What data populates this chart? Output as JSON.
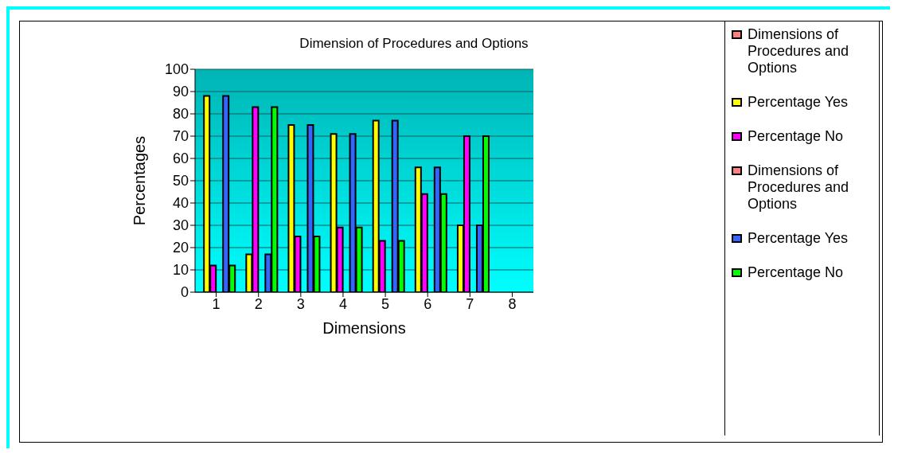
{
  "chart_data": {
    "type": "bar",
    "title": "Dimension of Procedures and Options",
    "xlabel": "Dimensions",
    "ylabel": "Percentages",
    "categories": [
      "1",
      "2",
      "3",
      "4",
      "5",
      "6",
      "7",
      "8"
    ],
    "series": [
      {
        "name": "Dimensions of Procedures and Options",
        "color": "#ff8080",
        "values": [
          null,
          null,
          null,
          null,
          null,
          null,
          null,
          null
        ]
      },
      {
        "name": "Percentage Yes",
        "color": "#ffff00",
        "values": [
          88,
          17,
          75,
          71,
          77,
          56,
          30,
          null
        ]
      },
      {
        "name": "Percentage No",
        "color": "#ff00ff",
        "values": [
          12,
          83,
          25,
          29,
          23,
          44,
          70,
          null
        ]
      },
      {
        "name": "Dimensions of Procedures and Options",
        "color": "#ff8080",
        "values": [
          null,
          null,
          null,
          null,
          null,
          null,
          null,
          null
        ]
      },
      {
        "name": "Percentage Yes",
        "color": "#3366ff",
        "values": [
          88,
          17,
          75,
          71,
          77,
          56,
          30,
          null
        ]
      },
      {
        "name": "Percentage No",
        "color": "#00ff00",
        "values": [
          12,
          83,
          25,
          29,
          23,
          44,
          70,
          null
        ]
      }
    ],
    "ylim": [
      0,
      100
    ],
    "yticks": [
      0,
      10,
      20,
      30,
      40,
      50,
      60,
      70,
      80,
      90,
      100
    ],
    "grid": "y",
    "legend": "right"
  }
}
